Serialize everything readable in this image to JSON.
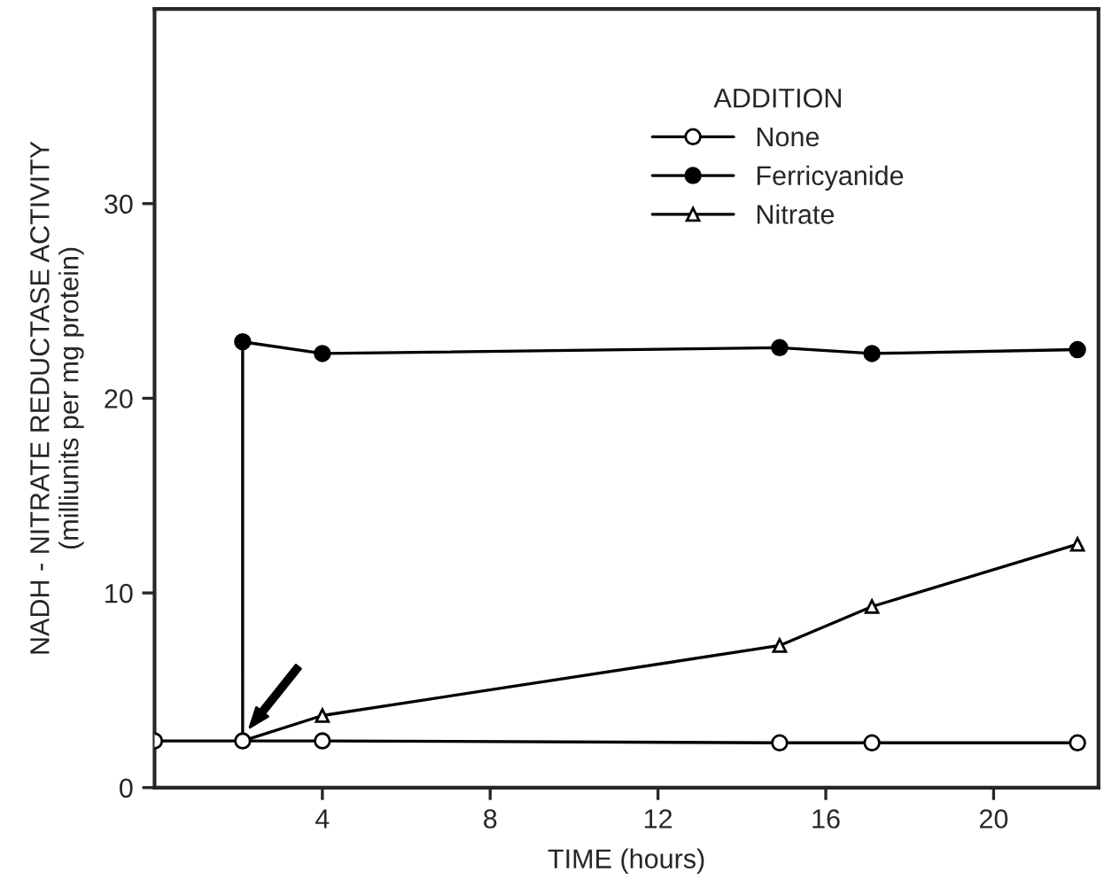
{
  "chart_data": {
    "type": "line",
    "xlabel": "TIME (hours)",
    "ylabel": "NADH - NITRATE REDUCTASE ACTIVITY\n(milliunits per mg protein)",
    "legend_title": "ADDITION",
    "legend": "top right",
    "xlim": [
      0,
      22.5
    ],
    "xticks": [
      4,
      8,
      12,
      16,
      20
    ],
    "ylim": [
      0,
      40
    ],
    "yticks": [
      0,
      10,
      20,
      30
    ],
    "grid": false,
    "series": [
      {
        "name": "None",
        "color": "#000000",
        "marker": "circle",
        "x": [
          0,
          2.1,
          4,
          14.9,
          17.1,
          22
        ],
        "values": [
          2.4,
          2.4,
          2.4,
          2.3,
          2.3,
          2.3
        ]
      },
      {
        "name": "Ferricyanide",
        "color": "#000000",
        "marker": "circle",
        "x": [
          2.1,
          2.1,
          4,
          14.9,
          17.1,
          22
        ],
        "values": [
          2.4,
          22.9,
          22.3,
          22.6,
          22.3,
          22.5
        ]
      },
      {
        "name": "Nitrate",
        "color": "#000000",
        "marker": "triangle",
        "x": [
          2.1,
          4,
          14.9,
          17.1,
          22
        ],
        "values": [
          2.4,
          3.7,
          7.3,
          9.3,
          12.5
        ]
      }
    ]
  }
}
